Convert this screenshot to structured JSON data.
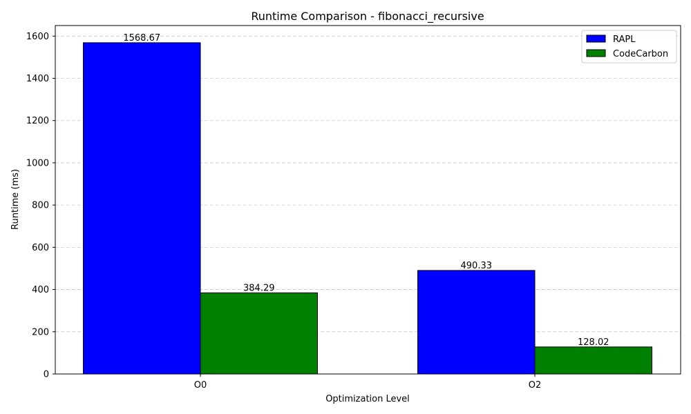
{
  "chart_data": {
    "type": "bar",
    "title": "Runtime Comparison - fibonacci_recursive",
    "xlabel": "Optimization Level",
    "ylabel": "Runtime (ms)",
    "categories": [
      "O0",
      "O2"
    ],
    "series": [
      {
        "name": "RAPL",
        "values": [
          1568.67,
          490.33
        ],
        "value_labels": [
          "1568.67",
          "490.33"
        ],
        "color": "#0000ff"
      },
      {
        "name": "CodeCarbon",
        "values": [
          384.29,
          128.02
        ],
        "value_labels": [
          "384.29",
          "128.02"
        ],
        "color": "#008000"
      }
    ],
    "ylim": [
      0,
      1650
    ],
    "yticks": [
      0,
      200,
      400,
      600,
      800,
      1000,
      1200,
      1400,
      1600
    ],
    "ytick_labels": [
      "0",
      "200",
      "400",
      "600",
      "800",
      "1000",
      "1200",
      "1400",
      "1600"
    ],
    "grid": "y-dashed",
    "legend_position": "top-right",
    "bar_edge_color": "#000000"
  }
}
